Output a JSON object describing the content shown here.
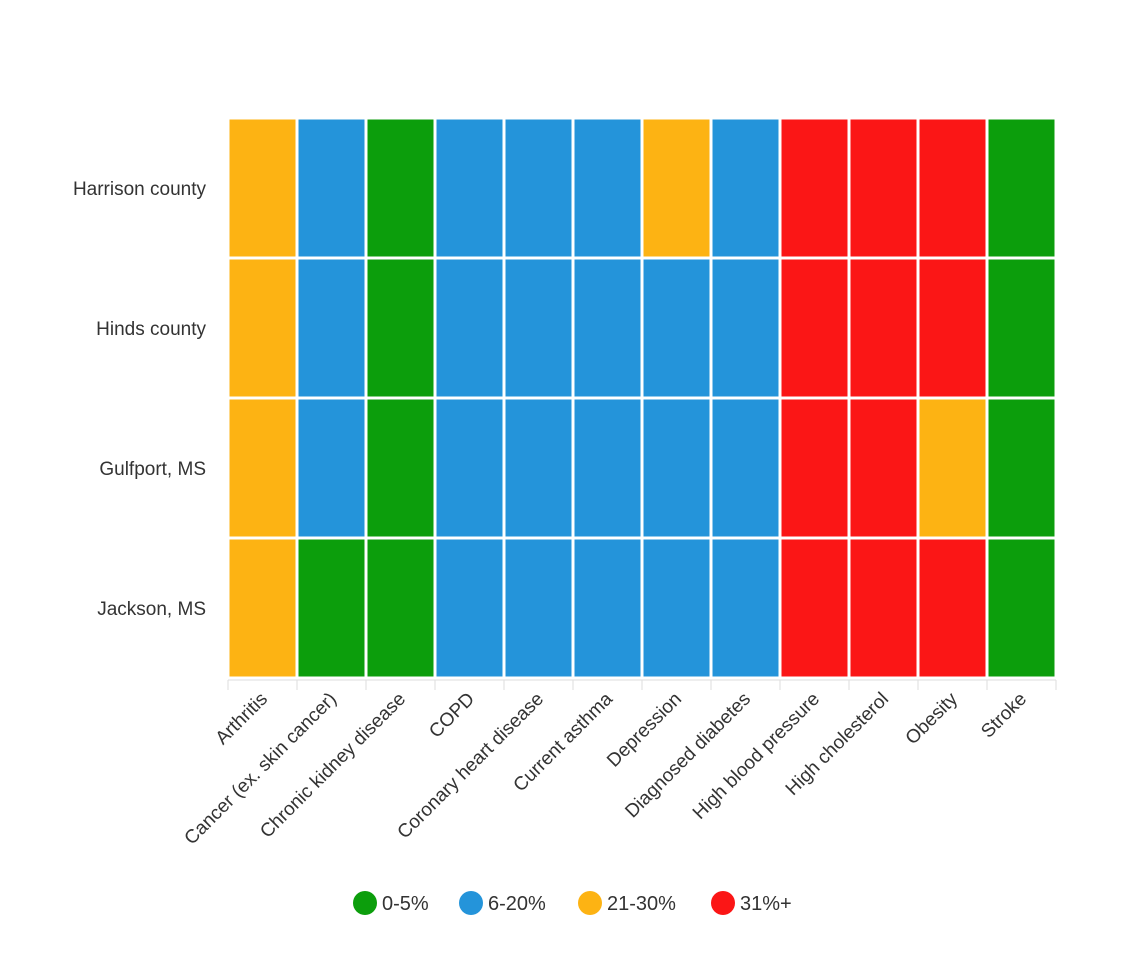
{
  "chart_data": {
    "type": "heatmap",
    "title": "",
    "xlabel": "",
    "ylabel": "",
    "rows": [
      "Harrison county",
      "Hinds county",
      "Gulfport, MS",
      "Jackson, MS"
    ],
    "categories": [
      "Arthritis",
      "Cancer (ex. skin cancer)",
      "Chronic kidney disease",
      "COPD",
      "Coronary heart disease",
      "Current asthma",
      "Depression",
      "Diagnosed diabetes",
      "High blood pressure",
      "High cholesterol",
      "Obesity",
      "Stroke"
    ],
    "bins": [
      {
        "label": "0-5%",
        "color": "#0c9e0c"
      },
      {
        "label": "6-20%",
        "color": "#2494da"
      },
      {
        "label": "21-30%",
        "color": "#fdb313"
      },
      {
        "label": "31%+",
        "color": "#fb1616"
      }
    ],
    "values": [
      [
        "21-30%",
        "6-20%",
        "0-5%",
        "6-20%",
        "6-20%",
        "6-20%",
        "21-30%",
        "6-20%",
        "31%+",
        "31%+",
        "31%+",
        "0-5%"
      ],
      [
        "21-30%",
        "6-20%",
        "0-5%",
        "6-20%",
        "6-20%",
        "6-20%",
        "6-20%",
        "6-20%",
        "31%+",
        "31%+",
        "31%+",
        "0-5%"
      ],
      [
        "21-30%",
        "6-20%",
        "0-5%",
        "6-20%",
        "6-20%",
        "6-20%",
        "6-20%",
        "6-20%",
        "31%+",
        "31%+",
        "21-30%",
        "0-5%"
      ],
      [
        "21-30%",
        "0-5%",
        "0-5%",
        "6-20%",
        "6-20%",
        "6-20%",
        "6-20%",
        "6-20%",
        "31%+",
        "31%+",
        "31%+",
        "0-5%"
      ]
    ],
    "legend": {
      "position": "bottom",
      "items": [
        "0-5%",
        "6-20%",
        "21-30%",
        "31%+"
      ]
    },
    "grid": false
  }
}
